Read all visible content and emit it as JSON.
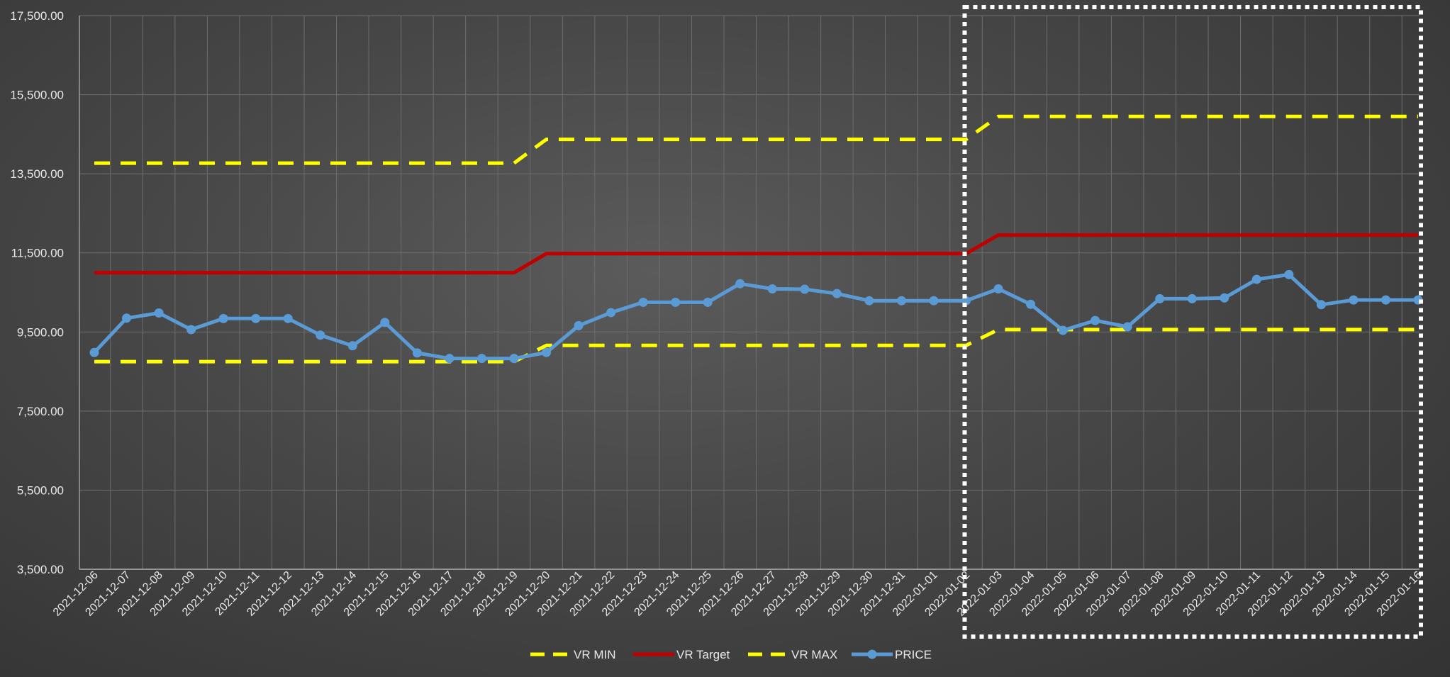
{
  "chart_data": {
    "type": "line",
    "title": "",
    "xlabel": "",
    "ylabel": "",
    "ylim": [
      3500,
      17500
    ],
    "yticks": [
      "3,500.00",
      "5,500.00",
      "7,500.00",
      "9,500.00",
      "11,500.00",
      "13,500.00",
      "15,500.00",
      "17,500.00"
    ],
    "ytick_values": [
      3500,
      5500,
      7500,
      9500,
      11500,
      13500,
      15500,
      17500
    ],
    "grid": true,
    "legend_position": "bottom",
    "x": [
      "2021-12-06",
      "2021-12-07",
      "2021-12-08",
      "2021-12-09",
      "2021-12-10",
      "2021-12-11",
      "2021-12-12",
      "2021-12-13",
      "2021-12-14",
      "2021-12-15",
      "2021-12-16",
      "2021-12-17",
      "2021-12-18",
      "2021-12-19",
      "2021-12-20",
      "2021-12-21",
      "2021-12-22",
      "2021-12-23",
      "2021-12-24",
      "2021-12-25",
      "2021-12-26",
      "2021-12-27",
      "2021-12-28",
      "2021-12-29",
      "2021-12-30",
      "2021-12-31",
      "2022-01-01",
      "2022-01-02",
      "2022-01-03",
      "2022-01-04",
      "2022-01-05",
      "2022-01-06",
      "2022-01-07",
      "2022-01-08",
      "2022-01-09",
      "2022-01-10",
      "2022-01-11",
      "2022-01-12",
      "2022-01-13",
      "2022-01-14",
      "2022-01-15",
      "2022-01-16"
    ],
    "series": [
      {
        "name": "VR MIN",
        "color": "#ffff00",
        "style": "dashed",
        "values": [
          8750,
          8750,
          8750,
          8750,
          8750,
          8750,
          8750,
          8750,
          8750,
          8750,
          8750,
          8750,
          8750,
          8750,
          9160,
          9160,
          9160,
          9160,
          9160,
          9160,
          9160,
          9160,
          9160,
          9160,
          9160,
          9160,
          9160,
          9160,
          9560,
          9560,
          9560,
          9560,
          9560,
          9560,
          9560,
          9560,
          9560,
          9560,
          9560,
          9560,
          9560,
          9560
        ]
      },
      {
        "name": "VR Target",
        "color": "#c00000",
        "style": "solid",
        "values": [
          11000,
          11000,
          11000,
          11000,
          11000,
          11000,
          11000,
          11000,
          11000,
          11000,
          11000,
          11000,
          11000,
          11000,
          11480,
          11480,
          11480,
          11480,
          11480,
          11480,
          11480,
          11480,
          11480,
          11480,
          11480,
          11480,
          11480,
          11480,
          11950,
          11950,
          11950,
          11950,
          11950,
          11950,
          11950,
          11950,
          11950,
          11950,
          11950,
          11950,
          11950,
          11950
        ]
      },
      {
        "name": "VR MAX",
        "color": "#ffff00",
        "style": "dashed",
        "values": [
          13770,
          13770,
          13770,
          13770,
          13770,
          13770,
          13770,
          13770,
          13770,
          13770,
          13770,
          13770,
          13770,
          13770,
          14370,
          14370,
          14370,
          14370,
          14370,
          14370,
          14370,
          14370,
          14370,
          14370,
          14370,
          14370,
          14370,
          14370,
          14950,
          14950,
          14950,
          14950,
          14950,
          14950,
          14950,
          14950,
          14950,
          14950,
          14950,
          14950,
          14950,
          14950
        ]
      },
      {
        "name": "PRICE",
        "color": "#5b9bd5",
        "style": "solid-markers",
        "values": [
          8980,
          9850,
          9980,
          9560,
          9840,
          9840,
          9840,
          9420,
          9150,
          9740,
          8970,
          8830,
          8830,
          8830,
          8980,
          9660,
          9990,
          10250,
          10250,
          10250,
          10720,
          10590,
          10580,
          10470,
          10290,
          10290,
          10290,
          10290,
          10590,
          10200,
          9540,
          9790,
          9630,
          10340,
          10340,
          10360,
          10830,
          10950,
          10190,
          10310,
          10310,
          10310
        ]
      }
    ],
    "annotation_box": {
      "style": "dotted",
      "color": "#ffffff",
      "from": "2022-01-02",
      "to": "2022-01-16"
    }
  }
}
